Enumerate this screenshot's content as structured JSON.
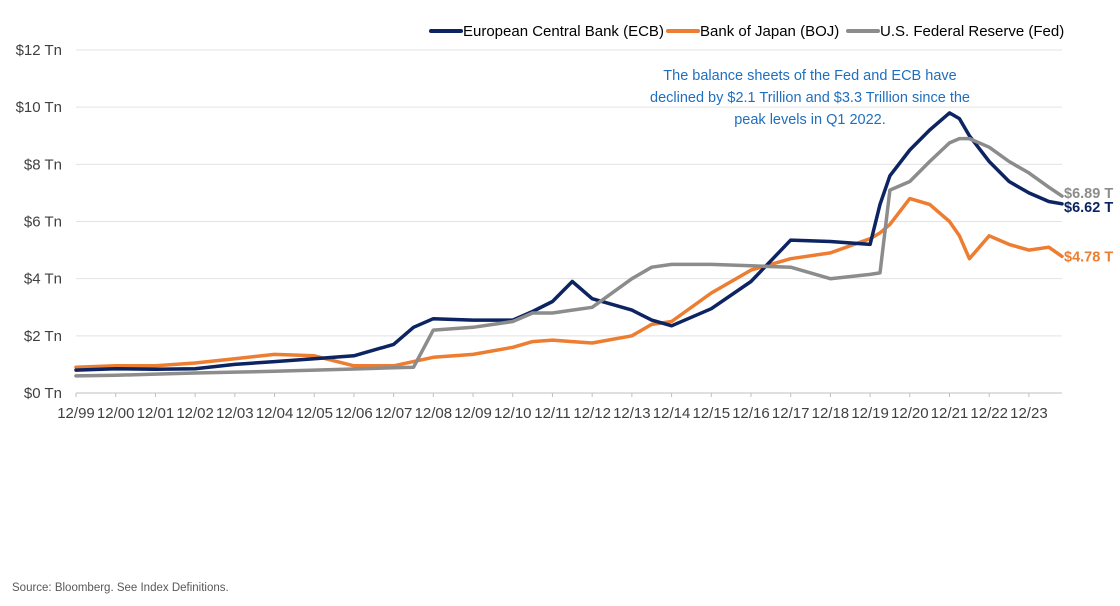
{
  "chart_data": {
    "type": "line",
    "xlabel": "",
    "ylabel": "",
    "x_ticks": [
      "12/99",
      "12/00",
      "12/01",
      "12/02",
      "12/03",
      "12/04",
      "12/05",
      "12/06",
      "12/07",
      "12/08",
      "12/09",
      "12/10",
      "12/11",
      "12/12",
      "12/13",
      "12/14",
      "12/15",
      "12/16",
      "12/17",
      "12/18",
      "12/19",
      "12/20",
      "12/21",
      "12/22",
      "12/23"
    ],
    "y_ticks": [
      "$0 Tn",
      "$2 Tn",
      "$4 Tn",
      "$6 Tn",
      "$8 Tn",
      "$10 Tn",
      "$12 Tn"
    ],
    "ylim": [
      0,
      12
    ],
    "xlim": [
      "1999-12",
      "2024-10"
    ],
    "grid": "horizontal",
    "legend_position": "top-right",
    "annotation": [
      "The balance sheets of the Fed and ECB have",
      "declined by $2.1 Trillion and $3.3 Trillion since the",
      "peak levels in Q1 2022."
    ],
    "x": [
      "1999-12",
      "2000-12",
      "2001-12",
      "2002-12",
      "2003-12",
      "2004-12",
      "2005-12",
      "2006-12",
      "2007-12",
      "2008-06",
      "2008-12",
      "2009-12",
      "2010-12",
      "2011-06",
      "2011-12",
      "2012-06",
      "2012-12",
      "2013-12",
      "2014-06",
      "2014-12",
      "2015-12",
      "2016-12",
      "2017-12",
      "2018-12",
      "2019-12",
      "2020-03",
      "2020-06",
      "2020-12",
      "2021-06",
      "2021-12",
      "2022-03",
      "2022-06",
      "2022-12",
      "2023-06",
      "2023-12",
      "2024-06",
      "2024-10"
    ],
    "series": [
      {
        "name": "European Central Bank (ECB)",
        "color": "#0c2461",
        "end_label": "$6.62 T",
        "values": [
          0.8,
          0.85,
          0.83,
          0.85,
          1.0,
          1.1,
          1.2,
          1.3,
          1.7,
          2.3,
          2.6,
          2.55,
          2.55,
          2.85,
          3.2,
          3.9,
          3.3,
          2.9,
          2.55,
          2.35,
          2.95,
          3.9,
          5.35,
          5.3,
          5.2,
          6.6,
          7.6,
          8.5,
          9.2,
          9.8,
          9.6,
          9.0,
          8.1,
          7.4,
          7.0,
          6.7,
          6.62
        ]
      },
      {
        "name": "Bank of Japan (BOJ)",
        "color": "#ed7d31",
        "end_label": "$4.78 T",
        "values": [
          0.9,
          0.95,
          0.95,
          1.05,
          1.2,
          1.35,
          1.3,
          0.95,
          0.95,
          1.1,
          1.25,
          1.35,
          1.6,
          1.8,
          1.85,
          1.8,
          1.75,
          2.0,
          2.4,
          2.5,
          3.5,
          4.3,
          4.7,
          4.9,
          5.4,
          5.6,
          5.9,
          6.8,
          6.6,
          6.0,
          5.5,
          4.7,
          5.5,
          5.2,
          5.0,
          5.1,
          4.78
        ]
      },
      {
        "name": "U.S. Federal Reserve (Fed)",
        "color": "#8c8c8c",
        "end_label": "$6.89 T",
        "values": [
          0.6,
          0.62,
          0.66,
          0.7,
          0.73,
          0.76,
          0.8,
          0.84,
          0.88,
          0.9,
          2.2,
          2.3,
          2.5,
          2.8,
          2.8,
          2.9,
          3.0,
          4.0,
          4.4,
          4.5,
          4.5,
          4.45,
          4.4,
          4.0,
          4.15,
          4.2,
          7.1,
          7.4,
          8.1,
          8.75,
          8.9,
          8.9,
          8.6,
          8.1,
          7.7,
          7.2,
          6.89
        ]
      }
    ]
  },
  "source_text": "Source: Bloomberg. See Index Definitions."
}
